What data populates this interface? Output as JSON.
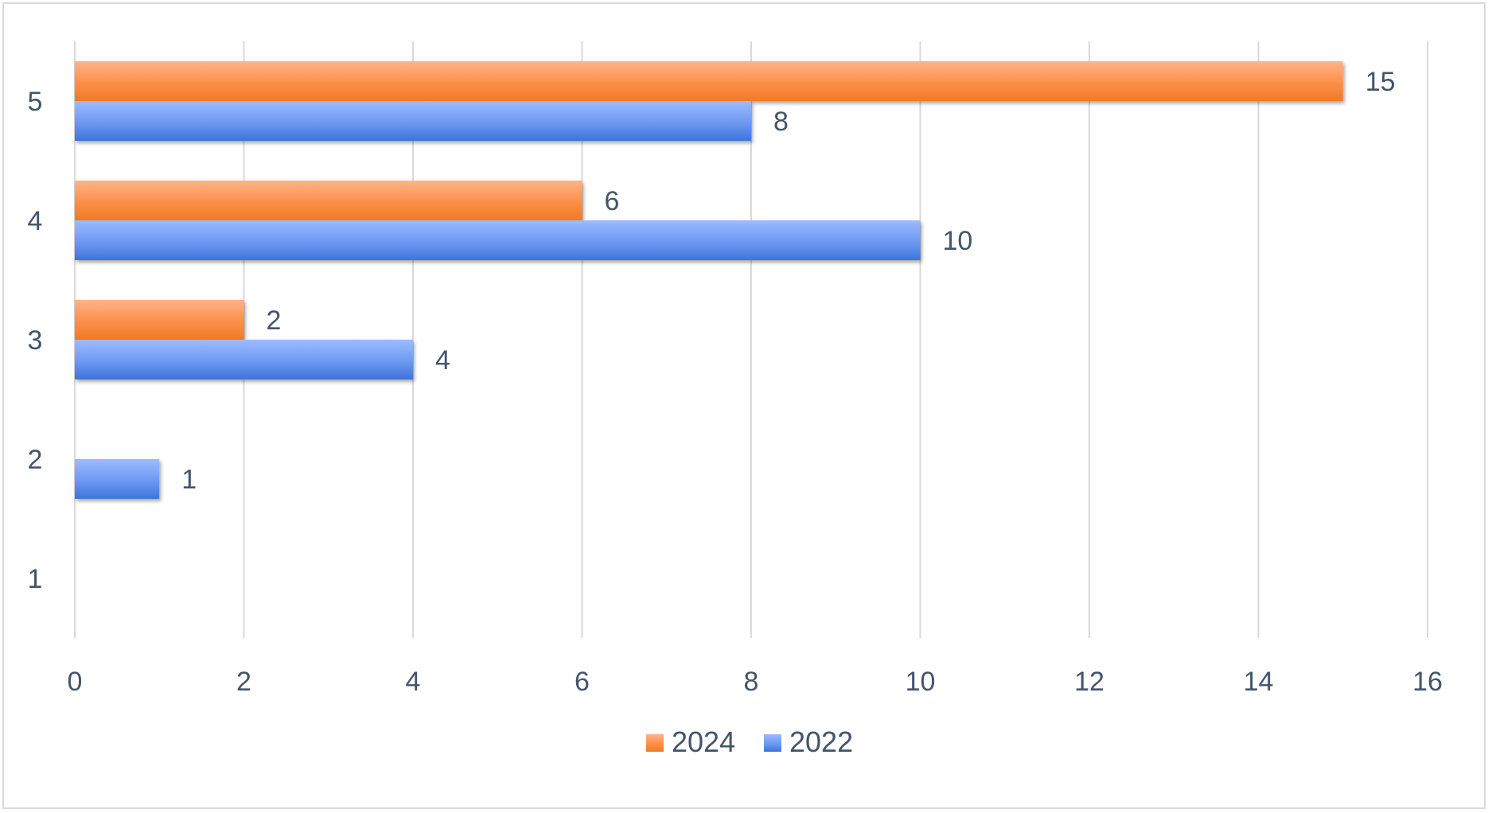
{
  "chart_data": {
    "type": "bar",
    "orientation": "horizontal",
    "categories": [
      "1",
      "2",
      "3",
      "4",
      "5"
    ],
    "series": [
      {
        "name": "2024",
        "values": [
          null,
          null,
          2,
          6,
          15
        ],
        "data_labels": [
          "",
          "",
          "2",
          "6",
          "15"
        ],
        "color": "#f98a3e"
      },
      {
        "name": "2022",
        "values": [
          null,
          1,
          4,
          10,
          8
        ],
        "data_labels": [
          "",
          "1",
          "4",
          "10",
          "8"
        ],
        "color": "#5b8fef"
      }
    ],
    "x_ticks": [
      "0",
      "2",
      "4",
      "6",
      "8",
      "10",
      "12",
      "14",
      "16"
    ],
    "xlim": [
      0,
      16
    ],
    "title": "",
    "xlabel": "",
    "ylabel": "",
    "grid": "vertical",
    "legend": "bottom",
    "text_color": "#44546a",
    "grid_color": "#d9d9d9"
  }
}
